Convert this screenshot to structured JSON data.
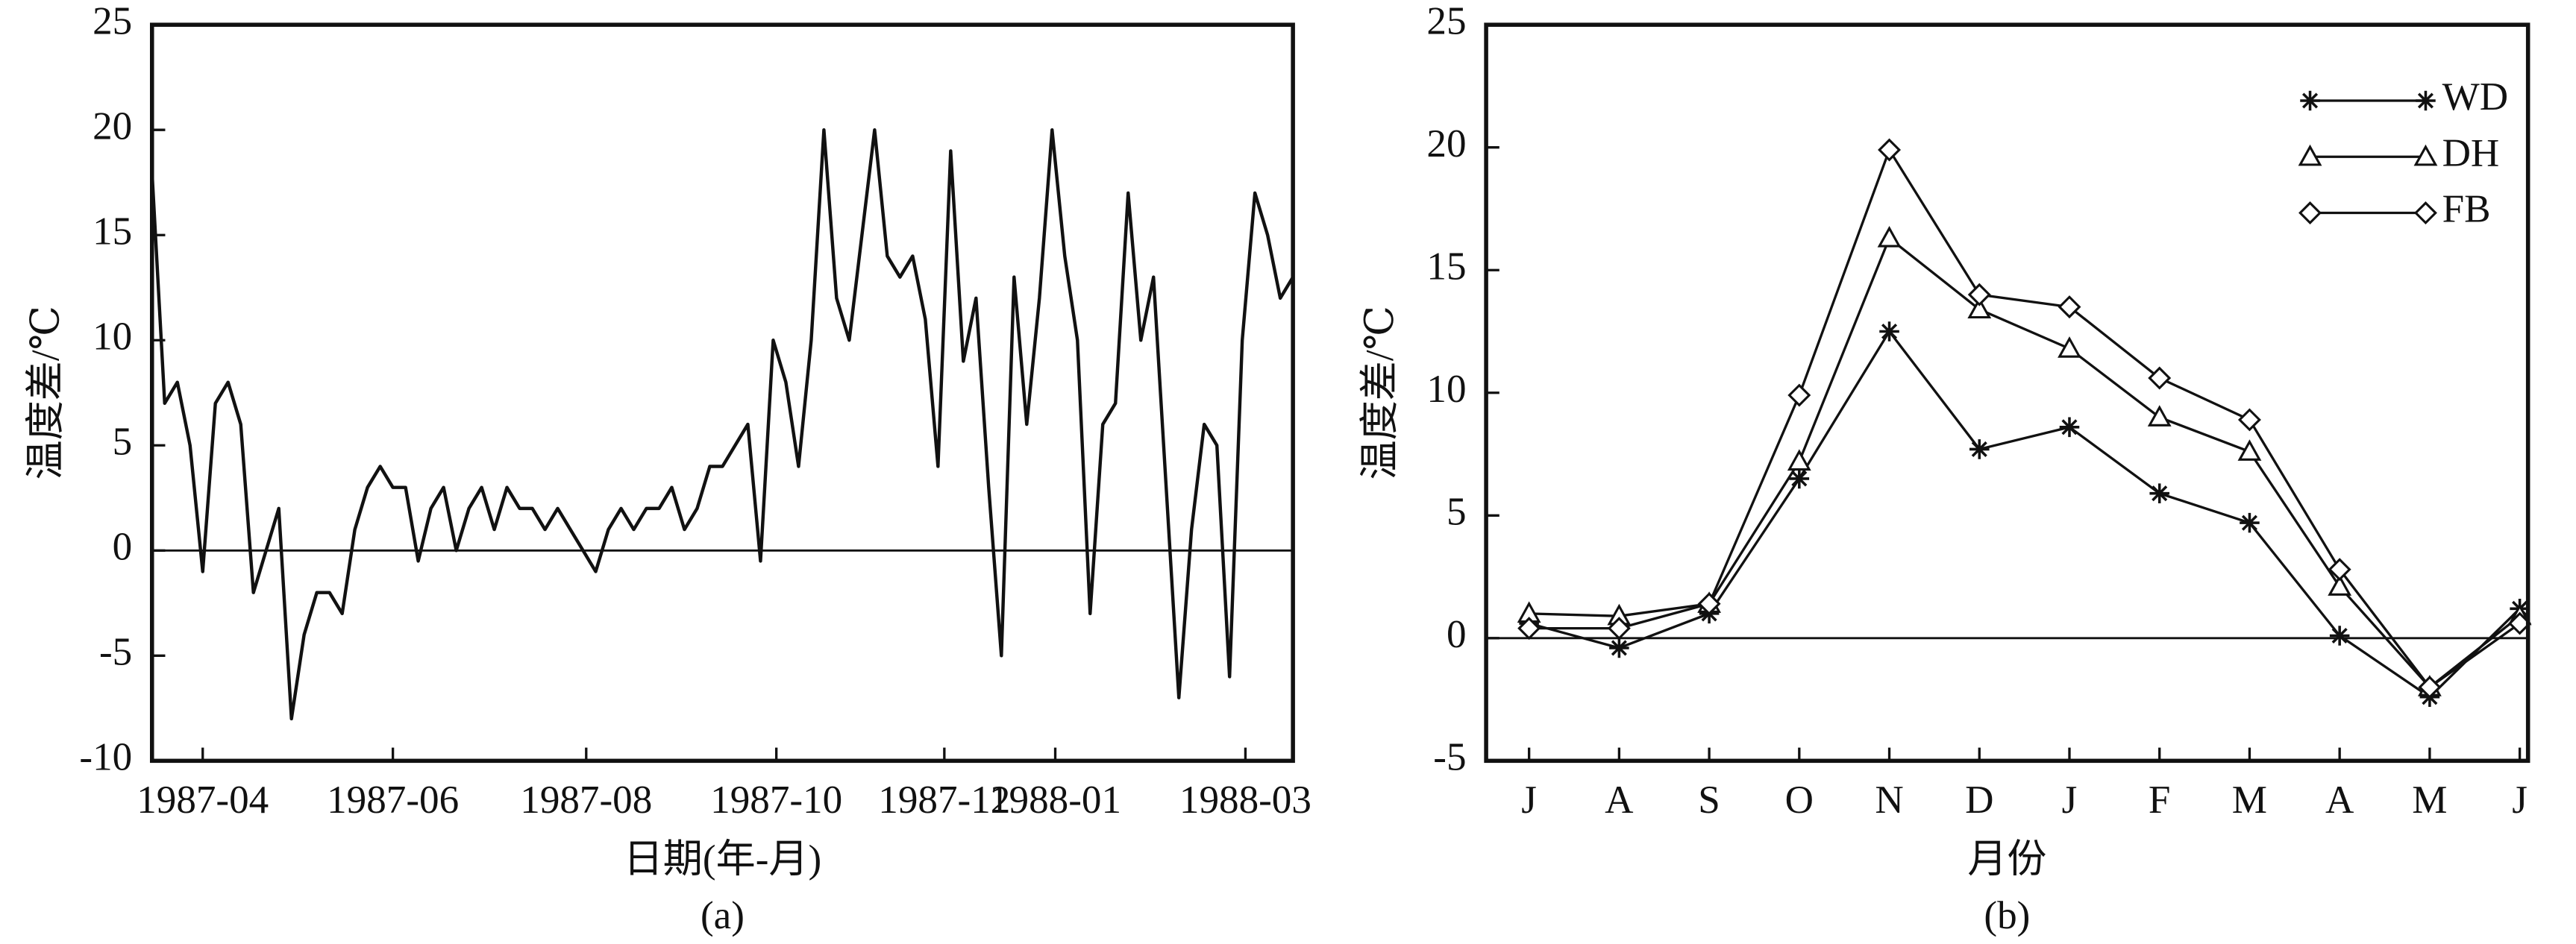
{
  "chart_data": [
    {
      "type": "line",
      "caption": "(a)",
      "xlabel": "日期(年-月)",
      "ylabel": "温度差/℃",
      "x": [
        0,
        4,
        8,
        12,
        16,
        20,
        24,
        28,
        32,
        36,
        40,
        44,
        48,
        52,
        56,
        60,
        64,
        68,
        72,
        76,
        80,
        84,
        88,
        92,
        96,
        100,
        104,
        108,
        112,
        116,
        120,
        124,
        128,
        132,
        136,
        140,
        144,
        148,
        152,
        156,
        160,
        164,
        168,
        172,
        176,
        180,
        184,
        188,
        192,
        196,
        200,
        204,
        208,
        212,
        216,
        220,
        224,
        228,
        232,
        236,
        240,
        244,
        248,
        252,
        256,
        260,
        264,
        268,
        272,
        276,
        280,
        284,
        288,
        292,
        296,
        300,
        304,
        308,
        312,
        316,
        320,
        324,
        328,
        332,
        336,
        340,
        344,
        348,
        352,
        356,
        360
      ],
      "series": [
        {
          "color": "#111111",
          "values": [
            18,
            7,
            8,
            5,
            -1,
            7,
            8,
            6,
            -2,
            0,
            2,
            -8,
            -4,
            -2,
            -2,
            -3,
            1,
            3,
            4,
            3,
            3,
            -0.5,
            2,
            3,
            0,
            2,
            3,
            1,
            3,
            2,
            2,
            1,
            2,
            1,
            0,
            -1,
            1,
            2,
            1,
            2,
            2,
            3,
            1,
            2,
            4,
            4,
            5,
            6,
            -0.5,
            10,
            8,
            4,
            10,
            20,
            12,
            10,
            15,
            20,
            14,
            13,
            14,
            11,
            4,
            19,
            9,
            12,
            3,
            -5,
            13,
            6,
            12,
            20,
            14,
            10,
            -3,
            6,
            7,
            17,
            10,
            13,
            3,
            -7,
            1,
            6,
            5,
            -6,
            10,
            17,
            15,
            12,
            13
          ]
        }
      ],
      "xlim": [
        0,
        360
      ],
      "xticks": [
        {
          "value": 16,
          "label": "1987-04"
        },
        {
          "value": 76,
          "label": "1987-06"
        },
        {
          "value": 137,
          "label": "1987-08"
        },
        {
          "value": 197,
          "label": "1987-10"
        },
        {
          "value": 250,
          "label": "1987-12"
        },
        {
          "value": 285,
          "label": "1988-01"
        },
        {
          "value": 345,
          "label": "1988-03"
        }
      ],
      "ylim": [
        -10,
        25
      ],
      "yticks": [
        -10,
        -5,
        0,
        5,
        10,
        15,
        20,
        25
      ],
      "zero_line": true
    },
    {
      "type": "line",
      "caption": "(b)",
      "xlabel": "月份",
      "ylabel": "温度差/℃",
      "categories": [
        "J",
        "A",
        "S",
        "O",
        "N",
        "D",
        "J",
        "F",
        "M",
        "A",
        "M",
        "J"
      ],
      "series": [
        {
          "name": "WD",
          "marker": "asterisk",
          "color": "#111111",
          "values": [
            0.6,
            -0.4,
            1.0,
            6.5,
            12.5,
            7.7,
            8.6,
            5.9,
            4.7,
            0.1,
            -2.4,
            1.2
          ]
        },
        {
          "name": "DH",
          "marker": "triangle",
          "color": "#111111",
          "values": [
            1.0,
            0.9,
            1.4,
            7.2,
            16.3,
            13.4,
            11.8,
            9.0,
            7.6,
            2.1,
            -2.0,
            0.9
          ]
        },
        {
          "name": "FB",
          "marker": "diamond",
          "color": "#111111",
          "values": [
            0.4,
            0.4,
            1.4,
            9.9,
            19.9,
            14.0,
            13.5,
            10.6,
            8.9,
            2.8,
            -2.0,
            0.6
          ]
        }
      ],
      "ylim": [
        -5,
        25
      ],
      "yticks": [
        -5,
        0,
        5,
        10,
        15,
        20,
        25
      ],
      "zero_line": true,
      "legend": "upper right"
    }
  ]
}
